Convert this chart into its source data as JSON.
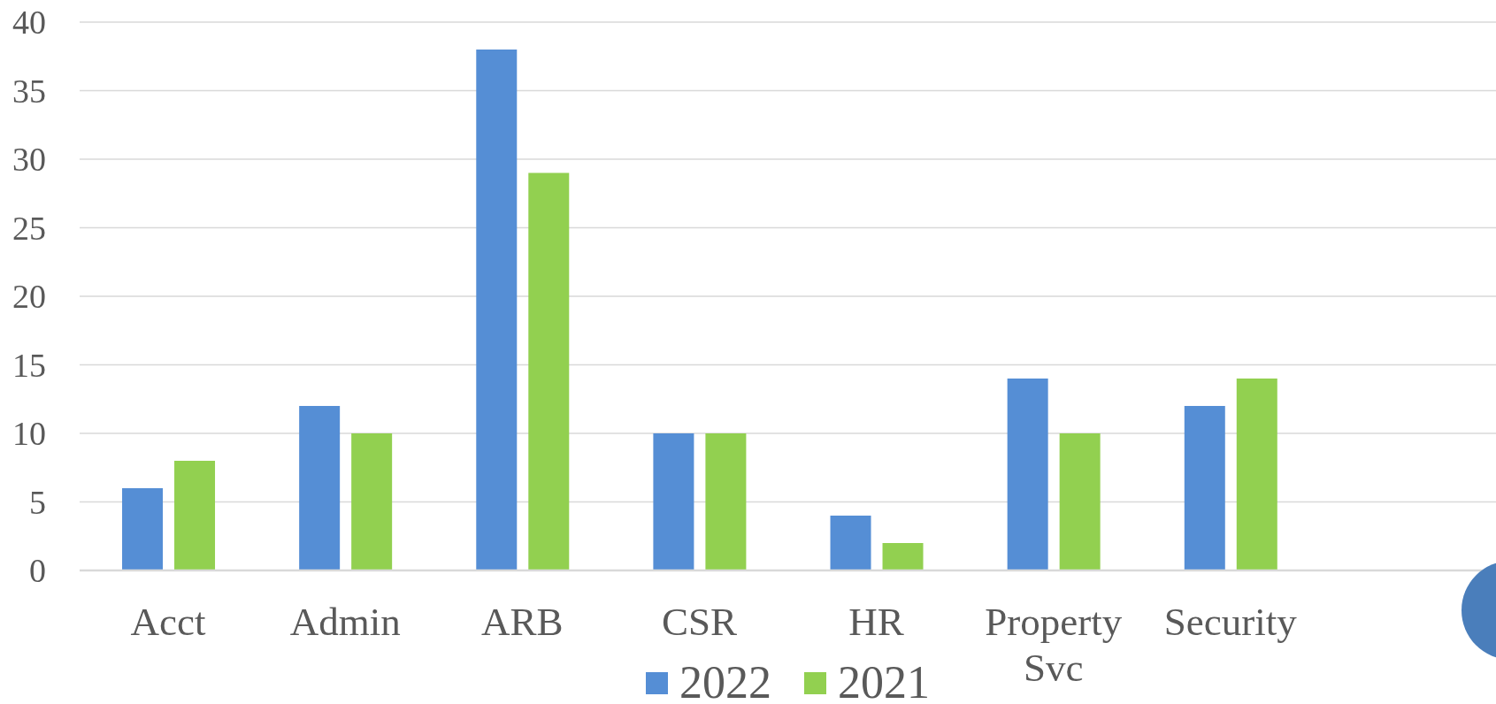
{
  "chart_data": {
    "type": "bar",
    "categories": [
      "Acct",
      "Admin",
      "ARB",
      "CSR",
      "HR",
      "Property Svc",
      "Security",
      null
    ],
    "series": [
      {
        "name": "2022",
        "color": "#558ed5",
        "values": [
          6,
          12,
          38,
          10,
          4,
          14,
          12,
          null
        ]
      },
      {
        "name": "2021",
        "color": "#92d050",
        "values": [
          8,
          10,
          29,
          10,
          2,
          10,
          14,
          null
        ]
      }
    ],
    "ylim": [
      0,
      40
    ],
    "yticks": [
      0,
      5,
      10,
      15,
      20,
      25,
      30,
      35,
      40
    ],
    "grid": "y",
    "legend": "bottom"
  }
}
